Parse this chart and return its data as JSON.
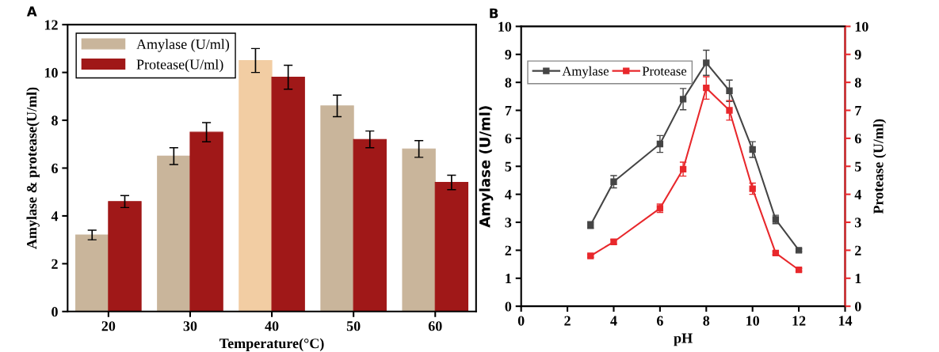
{
  "chart_data": [
    {
      "type": "bar",
      "annotations": [
        "A"
      ],
      "xlabel": "Temperature(°C)",
      "ylabel": "Amylase & protease(U/ml)",
      "categories": [
        "20",
        "30",
        "40",
        "50",
        "60"
      ],
      "ylim": [
        0,
        12
      ],
      "yticks": [
        0,
        2,
        4,
        6,
        8,
        10,
        12
      ],
      "legend": "top left",
      "series": [
        {
          "name": "Amylase (U/ml)",
          "color": "#c9b59b",
          "colors": [
            "#c9b59b",
            "#c9b59b",
            "#f2cda3",
            "#c9b59b",
            "#c9b59b"
          ],
          "values": [
            3.2,
            6.5,
            10.5,
            8.6,
            6.8
          ],
          "errors": [
            0.2,
            0.35,
            0.5,
            0.45,
            0.35
          ]
        },
        {
          "name": "Protease(U/ml)",
          "color": "#a01818",
          "values": [
            4.6,
            7.5,
            9.8,
            7.2,
            5.4
          ],
          "errors": [
            0.25,
            0.4,
            0.5,
            0.35,
            0.3
          ]
        }
      ]
    },
    {
      "type": "line",
      "annotations": [
        "B"
      ],
      "xlabel": "pH",
      "ylabel": "Amylase (U/ml)",
      "y2label": "Protease (U/ml)",
      "x": [
        3,
        4,
        6,
        7,
        8,
        9,
        10,
        11,
        12
      ],
      "xlim": [
        0,
        14
      ],
      "xticks": [
        0,
        2,
        4,
        6,
        8,
        10,
        12,
        14
      ],
      "ylim": [
        0,
        10
      ],
      "yticks": [
        0,
        1,
        2,
        3,
        4,
        5,
        6,
        7,
        8,
        9,
        10
      ],
      "y2lim": [
        0,
        10
      ],
      "y2ticks": [
        0,
        1,
        2,
        3,
        4,
        5,
        6,
        7,
        8,
        9,
        10
      ],
      "legend": "top left",
      "marker": "square",
      "line_style": "solid",
      "series": [
        {
          "name": "Amylase",
          "color": "#454545",
          "values": [
            2.9,
            4.45,
            5.8,
            7.4,
            8.7,
            7.7,
            5.6,
            3.1,
            2.0
          ],
          "errors": [
            0.12,
            0.22,
            0.3,
            0.38,
            0.45,
            0.38,
            0.28,
            0.15,
            0.05
          ]
        },
        {
          "name": "Protease",
          "color": "#e8282c",
          "axis": "y2",
          "values": [
            1.8,
            2.3,
            3.5,
            4.9,
            7.8,
            7.0,
            4.2,
            1.9,
            1.3
          ],
          "errors": [
            0.05,
            0.08,
            0.15,
            0.25,
            0.4,
            0.35,
            0.2,
            0.05,
            0.05
          ]
        }
      ]
    }
  ]
}
